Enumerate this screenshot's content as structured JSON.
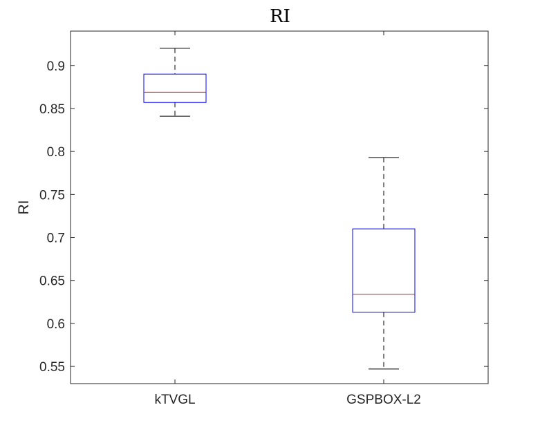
{
  "chart_data": {
    "type": "box",
    "title": "RI",
    "xlabel": "",
    "ylabel": "RI",
    "ylim": [
      0.53,
      0.94
    ],
    "yticks": [
      0.55,
      0.6,
      0.65,
      0.7,
      0.75,
      0.8,
      0.85,
      0.9
    ],
    "ytick_labels": [
      "0.55",
      "0.6",
      "0.65",
      "0.7",
      "0.75",
      "0.8",
      "0.85",
      "0.9"
    ],
    "categories": [
      "kTVGL",
      "GSPBOX-L2"
    ],
    "boxes": [
      {
        "category": "kTVGL",
        "whisker_low": 0.841,
        "q1": 0.857,
        "median": 0.869,
        "q3": 0.89,
        "whisker_high": 0.92
      },
      {
        "category": "GSPBOX-L2",
        "whisker_low": 0.547,
        "q1": 0.613,
        "median": 0.634,
        "q3": 0.71,
        "whisker_high": 0.793
      }
    ],
    "grid": false,
    "colors": {
      "box": "#0000ff",
      "median": "#ff0000",
      "whisker": "#000000",
      "axes": "#262626"
    }
  }
}
